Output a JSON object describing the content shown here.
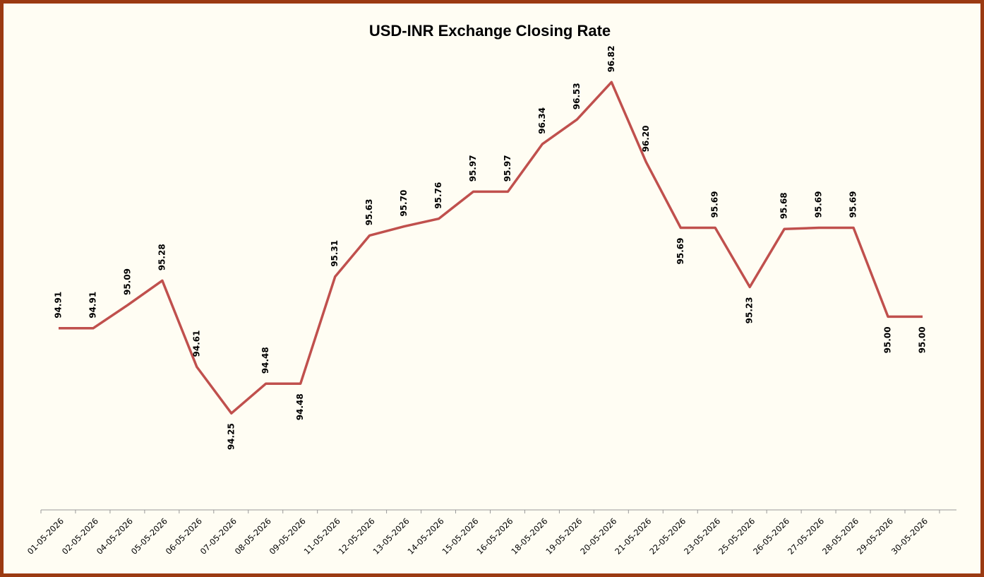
{
  "chart_data": {
    "type": "line",
    "title": "USD-INR Exchange Closing Rate",
    "categories": [
      "01-05-2026",
      "02-05-2026",
      "04-05-2026",
      "05-05-2026",
      "06-05-2026",
      "07-05-2026",
      "08-05-2026",
      "09-05-2026",
      "11-05-2026",
      "12-05-2026",
      "13-05-2026",
      "14-05-2026",
      "15-05-2026",
      "16-05-2026",
      "18-05-2026",
      "19-05-2026",
      "20-05-2026",
      "21-05-2026",
      "22-05-2026",
      "23-05-2026",
      "25-05-2026",
      "26-05-2026",
      "27-05-2026",
      "28-05-2026",
      "29-05-2026",
      "30-05-2026"
    ],
    "values": [
      94.91,
      94.91,
      95.09,
      95.28,
      94.61,
      94.25,
      94.48,
      94.48,
      95.31,
      95.63,
      95.7,
      95.76,
      95.97,
      95.97,
      96.34,
      96.53,
      96.82,
      96.2,
      95.69,
      95.69,
      95.23,
      95.68,
      95.69,
      95.69,
      95,
      95
    ],
    "value_labels": [
      "94.91",
      "94.91",
      "95.09",
      "95.28",
      "94.61",
      "94.25",
      "94.48",
      "94.48",
      "95.31",
      "95.63",
      "95.70",
      "95.76",
      "95.97",
      "95.97",
      "96.34",
      "96.53",
      "96.82",
      "96.20",
      "95.69",
      "95.69",
      "95.23",
      "95.68",
      "95.69",
      "95.69",
      "95.00",
      "95.00"
    ],
    "color": "#c0504d",
    "ylim": [
      93.5,
      97.2
    ]
  }
}
